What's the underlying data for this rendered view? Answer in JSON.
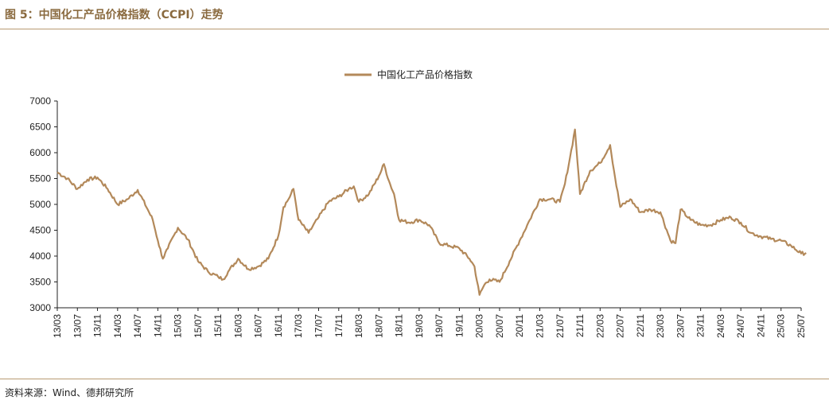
{
  "header": {
    "title": "图 5：中国化工产品价格指数（CCPI）走势"
  },
  "footer": {
    "source": "资料来源：Wind、德邦研究所"
  },
  "colors": {
    "accent": "#8a6a3f",
    "line": "#b3895a",
    "rule": "#b89a72"
  },
  "chart_data": {
    "type": "line",
    "title": "",
    "xlabel": "",
    "ylabel": "",
    "legend_position": "top-center",
    "grid": false,
    "ylim": [
      3000,
      7000
    ],
    "yticks": [
      3000,
      3500,
      4000,
      4500,
      5000,
      5500,
      6000,
      6500,
      7000
    ],
    "xticks": [
      "13/03",
      "13/07",
      "13/11",
      "14/03",
      "14/07",
      "14/11",
      "15/03",
      "15/07",
      "15/11",
      "16/03",
      "16/07",
      "16/11",
      "17/03",
      "17/07",
      "17/11",
      "18/03",
      "18/07",
      "18/11",
      "19/03",
      "19/07",
      "19/11",
      "20/03",
      "20/07",
      "20/11",
      "21/03",
      "21/07",
      "21/11",
      "22/03",
      "22/07",
      "22/11",
      "23/03",
      "23/07",
      "23/11",
      "24/03",
      "24/07",
      "24/11",
      "25/03",
      "25/07"
    ],
    "series": [
      {
        "name": "中国化工产品价格指数",
        "x": [
          "13/03",
          "13/05",
          "13/07",
          "13/09",
          "13/11",
          "14/01",
          "14/03",
          "14/05",
          "14/07",
          "14/09",
          "14/10",
          "14/11",
          "14/12",
          "15/01",
          "15/03",
          "15/05",
          "15/07",
          "15/09",
          "15/11",
          "15/12",
          "16/01",
          "16/03",
          "16/05",
          "16/07",
          "16/09",
          "16/11",
          "16/12",
          "17/01",
          "17/02",
          "17/03",
          "17/05",
          "17/07",
          "17/09",
          "17/11",
          "18/01",
          "18/02",
          "18/03",
          "18/05",
          "18/07",
          "18/08",
          "18/09",
          "18/10",
          "18/11",
          "19/01",
          "19/03",
          "19/05",
          "19/07",
          "19/09",
          "19/11",
          "20/01",
          "20/02",
          "20/03",
          "20/04",
          "20/05",
          "20/07",
          "20/09",
          "20/11",
          "21/01",
          "21/03",
          "21/05",
          "21/07",
          "21/08",
          "21/09",
          "21/10",
          "21/11",
          "22/01",
          "22/03",
          "22/05",
          "22/06",
          "22/07",
          "22/09",
          "22/11",
          "23/01",
          "23/03",
          "23/05",
          "23/06",
          "23/07",
          "23/09",
          "23/11",
          "24/01",
          "24/03",
          "24/05",
          "24/07",
          "24/09",
          "24/11",
          "25/01",
          "25/03",
          "25/05",
          "25/07",
          "25/08"
        ],
        "values": [
          5620,
          5500,
          5300,
          5480,
          5520,
          5300,
          5000,
          5100,
          5280,
          4900,
          4700,
          4300,
          3950,
          4150,
          4550,
          4320,
          3900,
          3700,
          3600,
          3550,
          3700,
          3950,
          3750,
          3800,
          3950,
          4400,
          4950,
          5100,
          5300,
          4700,
          4450,
          4750,
          5050,
          5150,
          5300,
          5350,
          5050,
          5200,
          5550,
          5780,
          5450,
          5200,
          4700,
          4650,
          4700,
          4600,
          4250,
          4200,
          4150,
          3950,
          3800,
          3250,
          3450,
          3550,
          3500,
          3900,
          4300,
          4700,
          5100,
          5100,
          5050,
          5400,
          5900,
          6450,
          5200,
          5650,
          5800,
          6150,
          5500,
          4950,
          5100,
          4850,
          4900,
          4850,
          4300,
          4250,
          4900,
          4700,
          4600,
          4600,
          4700,
          4750,
          4650,
          4450,
          4380,
          4330,
          4300,
          4200,
          4050,
          4060
        ]
      }
    ]
  }
}
